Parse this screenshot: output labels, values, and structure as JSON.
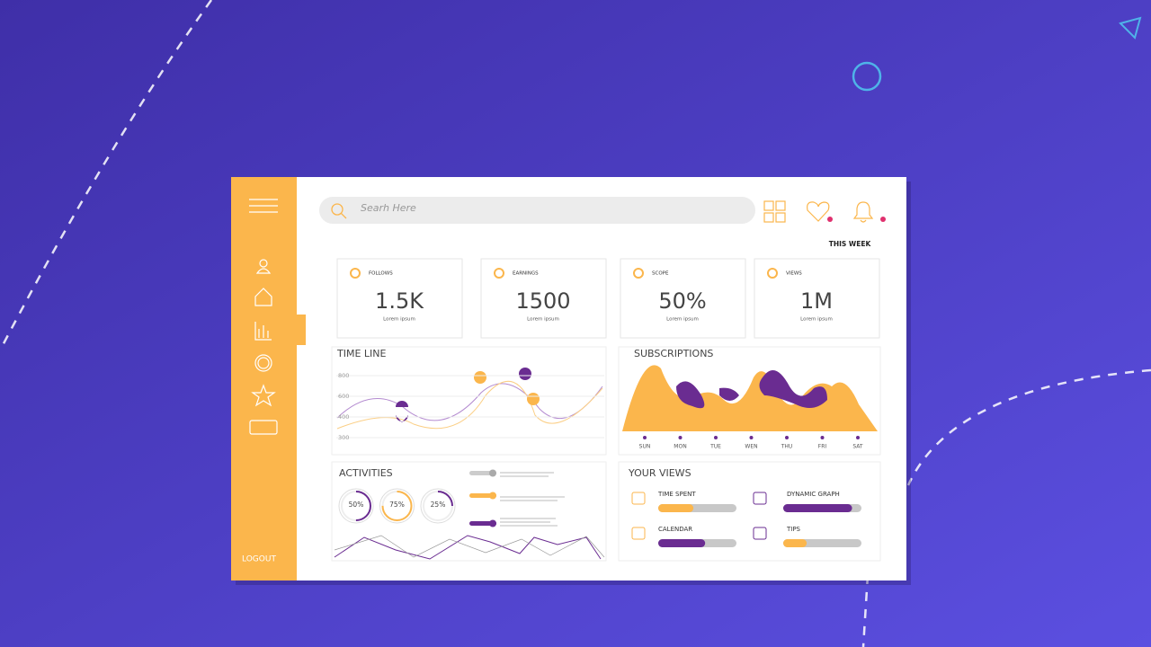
{
  "search": {
    "placeholder": "Searh Here"
  },
  "sidebar": {
    "logout": "LOGOUT"
  },
  "filter": "THIS WEEK",
  "stats": [
    {
      "label": "FOLLOWS",
      "value": "1.5K",
      "caption": "Lorem ipsum"
    },
    {
      "label": "EARNINGS",
      "value": "1500",
      "caption": "Lorem ipsum"
    },
    {
      "label": "SCOPE",
      "value": "50%",
      "caption": "Lorem ipsum"
    },
    {
      "label": "VIEWS",
      "value": "1M",
      "caption": "Lorem ipsum"
    }
  ],
  "timeline": {
    "title": "TIME LINE",
    "yticks": [
      800,
      600,
      400,
      300
    ]
  },
  "subscriptions": {
    "title": "SUBSCRIPTIONS",
    "days": [
      "SUN",
      "MON",
      "TUE",
      "WEN",
      "THU",
      "FRI",
      "SAT"
    ]
  },
  "activities": {
    "title": "ACTIVITIES",
    "rings": [
      {
        "value": 50,
        "label": "50%",
        "color": "#6a2c91"
      },
      {
        "value": 75,
        "label": "75%",
        "color": "#fbb64c"
      },
      {
        "value": 25,
        "label": "25%",
        "color": "#6a2c91"
      }
    ]
  },
  "your_views": {
    "title": "YOUR VIEWS",
    "items": [
      {
        "name": "TIME SPENT",
        "value": 45,
        "color": "#fbb64c"
      },
      {
        "name": "DYNAMIC GRAPH",
        "value": 88,
        "color": "#6a2c91"
      },
      {
        "name": "CALENDAR",
        "value": 60,
        "color": "#6a2c91"
      },
      {
        "name": "TIPS",
        "value": 30,
        "color": "#fbb64c"
      }
    ]
  }
}
